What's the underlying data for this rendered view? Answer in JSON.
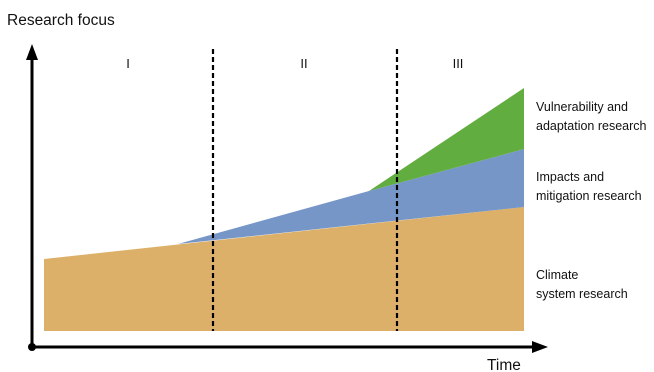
{
  "y_axis_label": "Research focus",
  "x_axis_label": "Time",
  "phases": [
    "I",
    "II",
    "III"
  ],
  "layers": [
    {
      "key": "climate",
      "lines": [
        "Climate",
        "system research"
      ],
      "color": "#DDB06A"
    },
    {
      "key": "impacts",
      "lines": [
        "Impacts and",
        "mitigation research"
      ],
      "color": "#7596C6"
    },
    {
      "key": "vulnerability",
      "lines": [
        "Vulnerability and",
        "adaptation research"
      ],
      "color": "#62AD3F"
    }
  ]
}
